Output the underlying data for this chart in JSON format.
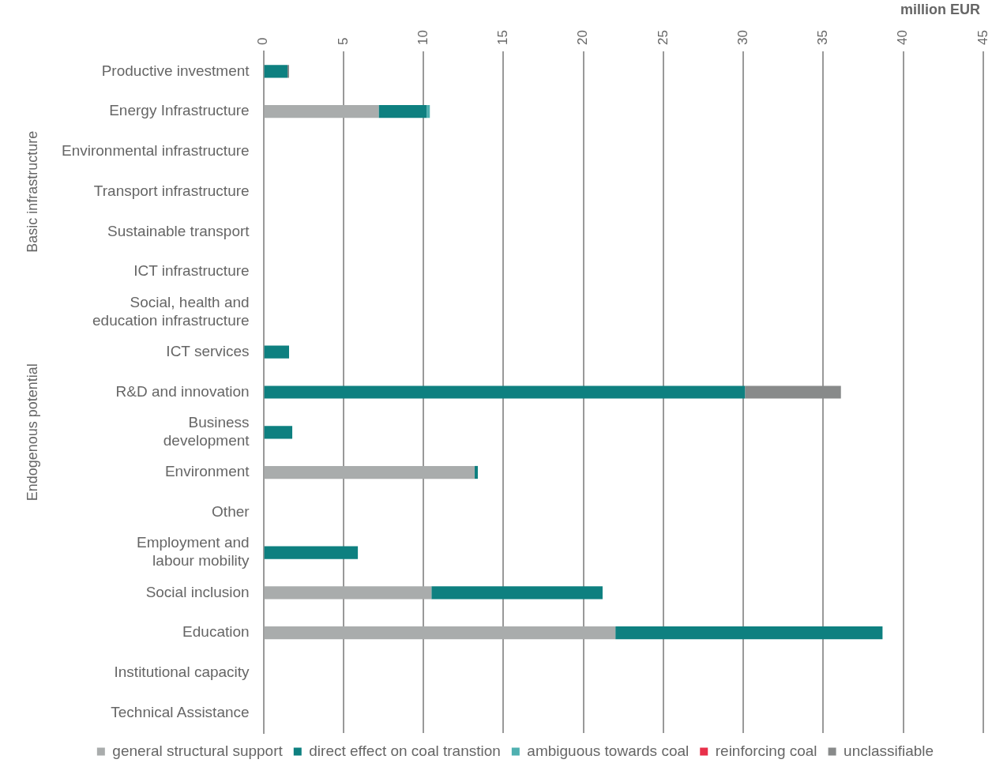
{
  "chart_data": {
    "type": "bar",
    "orientation": "horizontal",
    "stacked": true,
    "xlabel": "million EUR",
    "categories": [
      "Productive investment",
      "Energy Infrastructure",
      "Environmental infrastructure",
      "Transport infrastructure",
      "Sustainable transport",
      "ICT infrastructure",
      "Social, health and\neducation infrastructure",
      "ICT services",
      "R&D and innovation",
      "Business\ndevelopment",
      "Environment",
      "Other",
      "Employment and\nlabour mobility",
      "Social inclusion",
      "Education",
      "Institutional capacity",
      "Technical Assistance"
    ],
    "series": [
      {
        "name": "general structural support",
        "color": "#a9acac",
        "values": [
          0,
          7.2,
          0,
          0,
          0,
          0,
          0,
          0,
          0,
          0,
          13.2,
          0,
          0,
          10.5,
          22.0,
          0,
          0
        ]
      },
      {
        "name": "direct effect on coal transtion",
        "color": "#0e8080",
        "values": [
          1.5,
          3.0,
          0,
          0,
          0,
          0,
          0,
          1.6,
          30.1,
          1.8,
          0.2,
          0,
          5.9,
          10.7,
          16.7,
          0,
          0
        ]
      },
      {
        "name": "ambiguous towards coal",
        "color": "#4fb0b0",
        "values": [
          0,
          0.2,
          0,
          0,
          0,
          0,
          0,
          0,
          0,
          0,
          0,
          0,
          0,
          0,
          0,
          0,
          0
        ]
      },
      {
        "name": "reinforcing coal",
        "color": "#e8304a",
        "values": [
          0,
          0,
          0,
          0,
          0,
          0,
          0,
          0,
          0,
          0,
          0,
          0,
          0,
          0,
          0,
          0,
          0
        ]
      },
      {
        "name": "unclassifiable",
        "color": "#888a8a",
        "values": [
          0.1,
          0,
          0,
          0,
          0,
          0,
          0,
          0,
          6.0,
          0,
          0,
          0,
          0,
          0,
          0,
          0,
          0
        ]
      }
    ],
    "xlim": [
      0,
      45
    ],
    "xticks": [
      0,
      5,
      10,
      15,
      20,
      25,
      30,
      35,
      40,
      45
    ],
    "grid": "x",
    "legend": "bottom",
    "annotations": [
      "Basic infrastructure",
      "Endogenous potential"
    ]
  }
}
